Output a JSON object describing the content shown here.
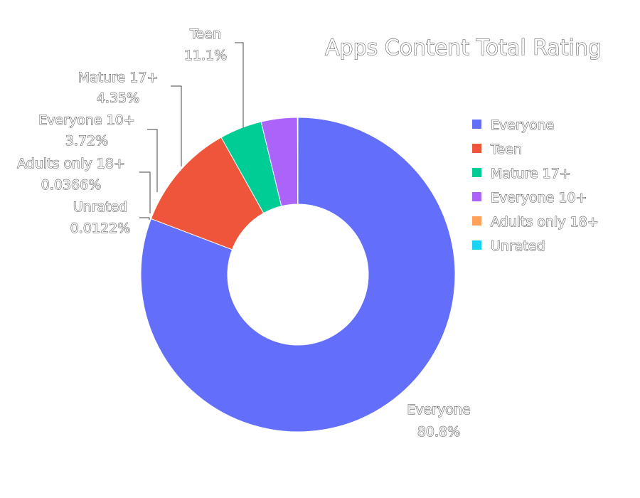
{
  "chart_data": {
    "type": "pie",
    "donut": true,
    "title": "Apps Content Total Rating",
    "legend_position": "right",
    "slices": [
      {
        "label": "Everyone",
        "percent_label": "80.8%",
        "value": 80.8,
        "color": "#636efa"
      },
      {
        "label": "Teen",
        "percent_label": "11.1%",
        "value": 11.1,
        "color": "#ef553b"
      },
      {
        "label": "Mature 17+",
        "percent_label": "4.35%",
        "value": 4.35,
        "color": "#00cc96"
      },
      {
        "label": "Everyone 10+",
        "percent_label": "3.72%",
        "value": 3.72,
        "color": "#ab63fa"
      },
      {
        "label": "Adults only 18+",
        "percent_label": "0.0366%",
        "value": 0.0366,
        "color": "#ffa15a"
      },
      {
        "label": "Unrated",
        "percent_label": "0.0122%",
        "value": 0.0122,
        "color": "#19d3f3"
      }
    ]
  }
}
